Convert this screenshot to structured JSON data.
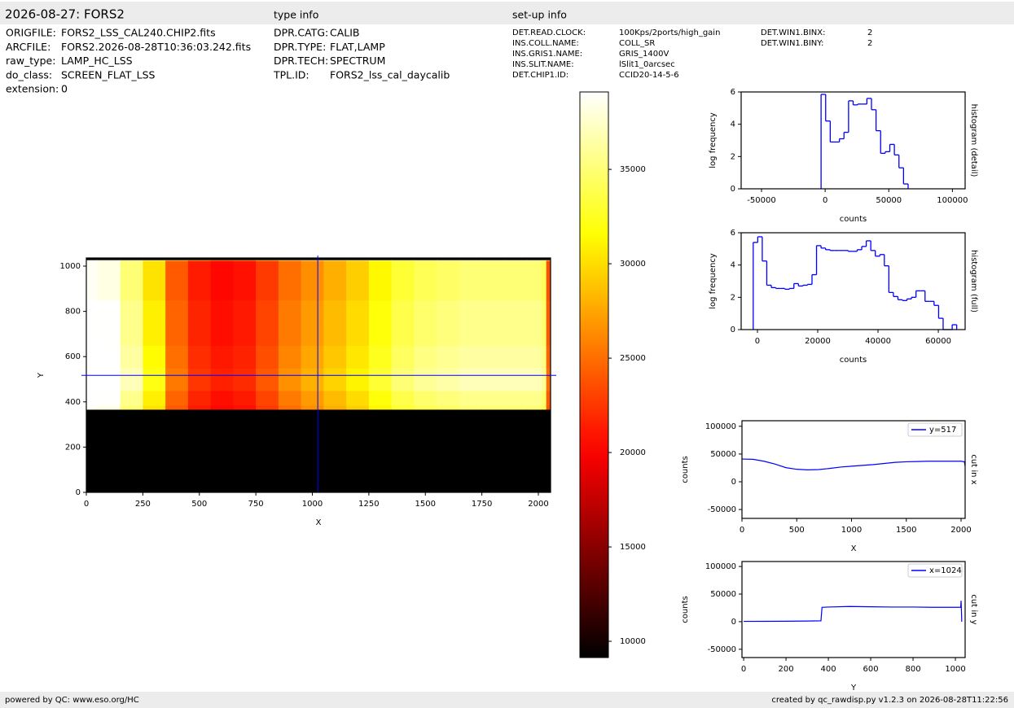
{
  "header": {
    "title": "2026-08-27: FORS2",
    "type_info": "type info",
    "setup_info": "set-up info"
  },
  "file_info": [
    {
      "label": "ORIGFILE:",
      "value": "FORS2_LSS_CAL240.CHIP2.fits"
    },
    {
      "label": "ARCFILE:",
      "value": "FORS2.2026-08-28T10:36:03.242.fits"
    },
    {
      "label": "raw_type:",
      "value": "LAMP_HC_LSS"
    },
    {
      "label": "do_class:",
      "value": "SCREEN_FLAT_LSS"
    },
    {
      "label": "extension:",
      "value": "0"
    }
  ],
  "type_info": [
    {
      "label": "DPR.CATG:",
      "value": "CALIB"
    },
    {
      "label": "DPR.TYPE:",
      "value": "FLAT,LAMP"
    },
    {
      "label": "DPR.TECH:",
      "value": "SPECTRUM"
    },
    {
      "label": "TPL.ID:",
      "value": "FORS2_lss_cal_daycalib"
    }
  ],
  "setup_info": [
    {
      "label": "DET.READ.CLOCK:",
      "value": "100Kps/2ports/high_gain"
    },
    {
      "label": "INS.COLL.NAME:",
      "value": "COLL_SR"
    },
    {
      "label": "INS.GRIS1.NAME:",
      "value": "GRIS_1400V"
    },
    {
      "label": "INS.SLIT.NAME:",
      "value": "lSlit1_0arcsec"
    },
    {
      "label": "DET.CHIP1.ID:",
      "value": "CCID20-14-5-6"
    }
  ],
  "setup_info_2": [
    {
      "label": "DET.WIN1.BINX:",
      "value": "2"
    },
    {
      "label": "DET.WIN1.BINY:",
      "value": "2"
    }
  ],
  "footer": {
    "left": "powered by QC: www.eso.org/HC",
    "right": "created by qc_rawdisp.py v1.2.3 on 2026-08-28T11:22:56"
  },
  "chart_data": [
    {
      "type": "image",
      "xlabel": "X",
      "ylabel": "Y",
      "xlim": [
        0,
        2054
      ],
      "ylim": [
        0,
        1036
      ],
      "xticks": [
        0,
        250,
        500,
        750,
        1000,
        1250,
        1500,
        1750,
        2000
      ],
      "yticks": [
        0,
        200,
        400,
        600,
        800,
        1000
      ],
      "crosshair": {
        "x": 1024,
        "y": 517
      },
      "crosshair_color": "#0000ff",
      "colormap": "hot",
      "clim": [
        9140,
        39100
      ],
      "cticks": [
        10000,
        15000,
        20000,
        25000,
        30000,
        35000
      ]
    },
    {
      "type": "histogram",
      "xlabel": "counts",
      "ylabel": "log frequency",
      "side_label": "histogram (detail)",
      "color": "#0000ff",
      "xlim": [
        -66000,
        110000
      ],
      "ylim": [
        0,
        6
      ],
      "xticks": [
        -50000,
        0,
        50000,
        100000
      ],
      "yticks": [
        0,
        2,
        4,
        6
      ],
      "bins": [
        -3200,
        400,
        4000,
        7600,
        11200,
        14800,
        18400,
        22000,
        25600,
        29200,
        32800,
        36400,
        40000,
        43600,
        47200,
        50800,
        54400,
        58000,
        61600,
        65200
      ],
      "values": [
        5.85,
        4.2,
        2.9,
        2.9,
        3.1,
        3.5,
        5.45,
        5.2,
        5.25,
        5.25,
        5.6,
        4.9,
        3.6,
        2.2,
        2.3,
        2.75,
        2.1,
        1.3,
        0.3
      ]
    },
    {
      "type": "histogram",
      "xlabel": "counts",
      "ylabel": "log frequency",
      "side_label": "histogram (full)",
      "color": "#0000ff",
      "xlim": [
        -5400,
        68900
      ],
      "ylim": [
        0,
        6
      ],
      "xticks": [
        0,
        20000,
        40000,
        60000
      ],
      "yticks": [
        0,
        2,
        4,
        6
      ],
      "bins": [
        -1400,
        100,
        1600,
        3100,
        4600,
        6100,
        7600,
        9100,
        10600,
        12100,
        13600,
        15100,
        16600,
        18100,
        19600,
        21100,
        22600,
        24100,
        25600,
        27100,
        28600,
        30100,
        31600,
        33100,
        34600,
        36100,
        37600,
        39100,
        40600,
        42100,
        43600,
        45100,
        46600,
        48100,
        49600,
        51100,
        52600,
        54100,
        55600,
        57100,
        58600,
        60100,
        61600,
        63100,
        64600,
        66100
      ],
      "values": [
        5.4,
        5.75,
        4.25,
        2.75,
        2.6,
        2.55,
        2.55,
        2.5,
        2.55,
        2.85,
        2.7,
        2.75,
        2.8,
        3.4,
        5.2,
        5.05,
        4.95,
        4.9,
        4.9,
        4.9,
        4.9,
        4.85,
        4.85,
        4.95,
        5.15,
        5.5,
        4.9,
        4.55,
        4.65,
        3.95,
        2.3,
        2.05,
        1.85,
        1.8,
        1.9,
        2.0,
        2.4,
        2.4,
        1.75,
        1.75,
        1.5,
        0.7,
        0,
        0,
        0.3
      ]
    },
    {
      "type": "line",
      "xlabel": "X",
      "ylabel": "counts",
      "side_label": "cut in x",
      "legend": "upper right",
      "xlim": [
        0,
        2037
      ],
      "ylim": [
        -66000,
        110000
      ],
      "xticks": [
        0,
        500,
        1000,
        1500,
        2000
      ],
      "yticks": [
        -50000,
        0,
        50000,
        100000
      ],
      "x": [
        0,
        100,
        200,
        300,
        400,
        500,
        600,
        700,
        800,
        900,
        1000,
        1100,
        1200,
        1300,
        1400,
        1500,
        1600,
        1700,
        1800,
        1900,
        2000,
        2030,
        2040
      ],
      "series": [
        {
          "name": "y=517",
          "color": "#0000ff",
          "values": [
            41000,
            40500,
            37000,
            32000,
            25500,
            22500,
            21500,
            22000,
            24000,
            26500,
            28000,
            29500,
            31000,
            33000,
            35000,
            36000,
            36500,
            37000,
            37000,
            37000,
            37000,
            36000,
            25000
          ]
        }
      ]
    },
    {
      "type": "line",
      "xlabel": "Y",
      "ylabel": "counts",
      "side_label": "cut in y",
      "legend": "upper right",
      "xlim": [
        -8,
        1046
      ],
      "ylim": [
        -65000,
        109000
      ],
      "xticks": [
        0,
        200,
        400,
        600,
        800,
        1000
      ],
      "yticks": [
        -50000,
        0,
        50000,
        100000
      ],
      "x": [
        0,
        100,
        200,
        300,
        365,
        370,
        400,
        500,
        600,
        700,
        800,
        900,
        1000,
        1025,
        1027,
        1030
      ],
      "series": [
        {
          "name": "x=1024",
          "color": "#0000ff",
          "values": [
            500,
            600,
            800,
            1200,
            1500,
            26000,
            26500,
            27500,
            27000,
            26500,
            26500,
            26000,
            26000,
            26000,
            38000,
            0
          ]
        }
      ]
    }
  ]
}
